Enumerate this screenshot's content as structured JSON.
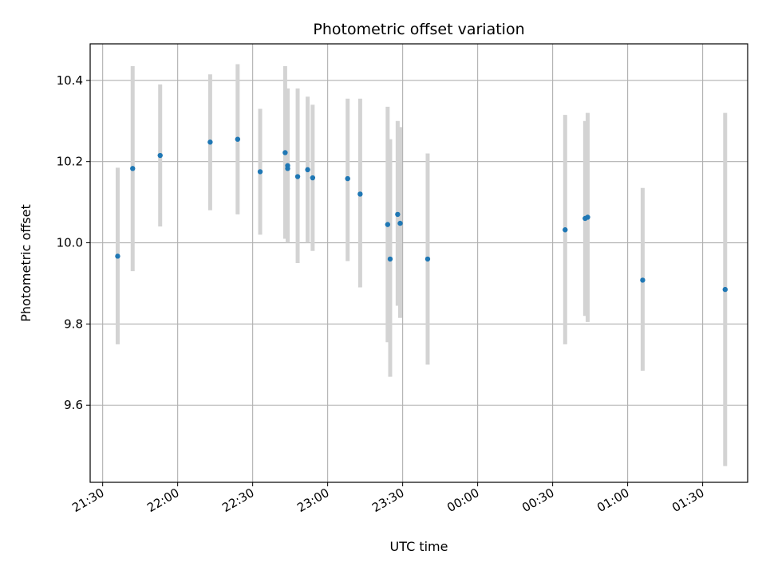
{
  "chart_data": {
    "type": "scatter",
    "title": "Photometric offset variation",
    "xlabel": "UTC time",
    "ylabel": "Photometric offset",
    "x_ticks": [
      "21:30",
      "22:00",
      "22:30",
      "23:00",
      "23:30",
      "00:00",
      "00:30",
      "01:00",
      "01:30"
    ],
    "y_ticks": [
      "9.6",
      "9.8",
      "10.0",
      "10.2",
      "10.4"
    ],
    "ylim": [
      9.41,
      10.49
    ],
    "xlim": [
      "21:25",
      "01:48"
    ],
    "grid": true,
    "colors": {
      "point": "#1f77b4",
      "errorbar": "#d3d3d3",
      "grid": "#b0b0b0"
    },
    "points": [
      {
        "x": "21:36",
        "y": 9.967,
        "err_low": 9.75,
        "err_high": 10.185
      },
      {
        "x": "21:42",
        "y": 10.183,
        "err_low": 9.93,
        "err_high": 10.435
      },
      {
        "x": "21:53",
        "y": 10.215,
        "err_low": 10.04,
        "err_high": 10.39
      },
      {
        "x": "22:13",
        "y": 10.248,
        "err_low": 10.08,
        "err_high": 10.415
      },
      {
        "x": "22:24",
        "y": 10.255,
        "err_low": 10.07,
        "err_high": 10.44
      },
      {
        "x": "22:33",
        "y": 10.175,
        "err_low": 10.02,
        "err_high": 10.33
      },
      {
        "x": "22:43",
        "y": 10.222,
        "err_low": 10.01,
        "err_high": 10.435
      },
      {
        "x": "22:44",
        "y": 10.19,
        "err_low": 10.005,
        "err_high": 10.38
      },
      {
        "x": "22:44",
        "y": 10.183,
        "err_low": 10.0,
        "err_high": 10.37
      },
      {
        "x": "22:48",
        "y": 10.163,
        "err_low": 9.95,
        "err_high": 10.38
      },
      {
        "x": "22:52",
        "y": 10.18,
        "err_low": 10.0,
        "err_high": 10.36
      },
      {
        "x": "22:54",
        "y": 10.16,
        "err_low": 9.98,
        "err_high": 10.34
      },
      {
        "x": "23:08",
        "y": 10.158,
        "err_low": 9.955,
        "err_high": 10.355
      },
      {
        "x": "23:13",
        "y": 10.12,
        "err_low": 9.89,
        "err_high": 10.355
      },
      {
        "x": "23:24",
        "y": 10.045,
        "err_low": 9.755,
        "err_high": 10.335
      },
      {
        "x": "23:25",
        "y": 9.96,
        "err_low": 9.67,
        "err_high": 10.255
      },
      {
        "x": "23:28",
        "y": 10.07,
        "err_low": 9.845,
        "err_high": 10.3
      },
      {
        "x": "23:29",
        "y": 10.048,
        "err_low": 9.815,
        "err_high": 10.285
      },
      {
        "x": "23:40",
        "y": 9.96,
        "err_low": 9.7,
        "err_high": 10.22
      },
      {
        "x": "00:35",
        "y": 10.032,
        "err_low": 9.75,
        "err_high": 10.315
      },
      {
        "x": "00:43",
        "y": 10.06,
        "err_low": 9.82,
        "err_high": 10.3
      },
      {
        "x": "00:44",
        "y": 10.063,
        "err_low": 9.805,
        "err_high": 10.32
      },
      {
        "x": "01:06",
        "y": 9.908,
        "err_low": 9.685,
        "err_high": 10.135
      },
      {
        "x": "01:39",
        "y": 9.885,
        "err_low": 9.45,
        "err_high": 10.32
      }
    ]
  }
}
